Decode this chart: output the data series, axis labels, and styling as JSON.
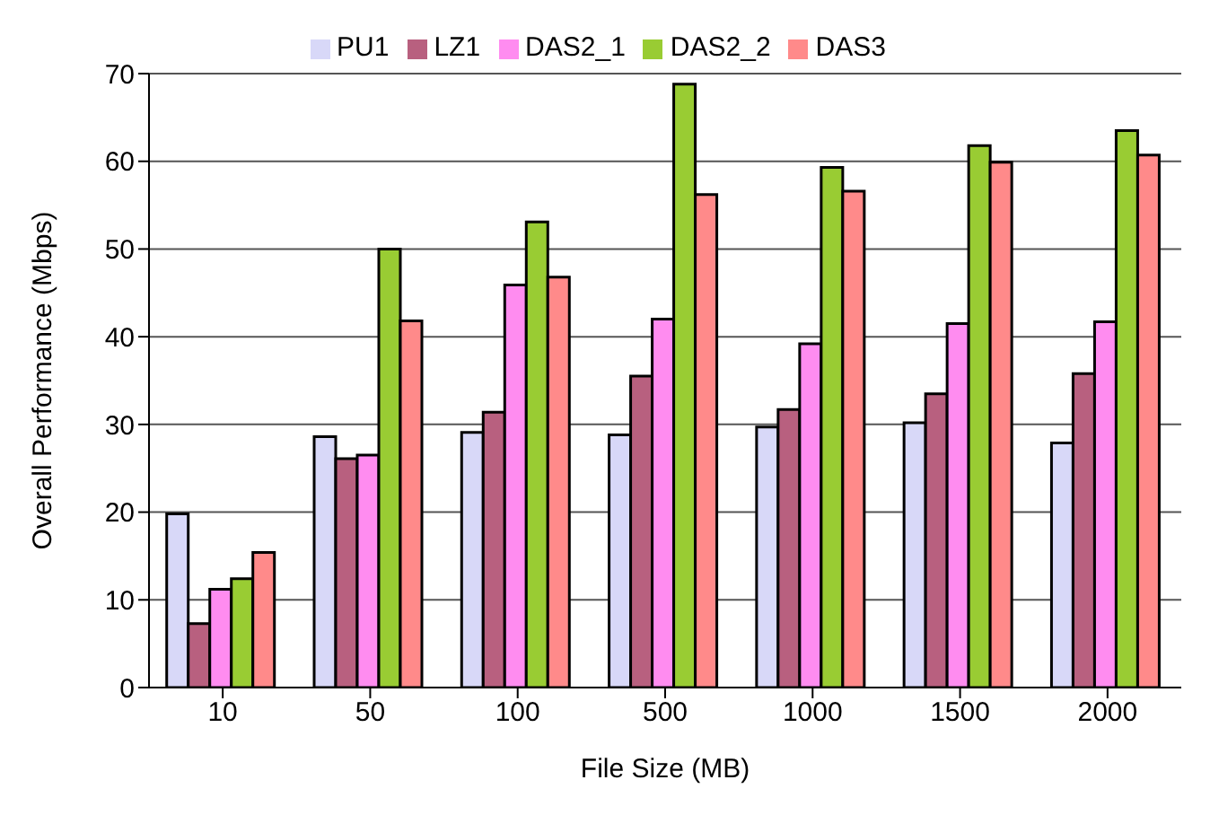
{
  "chart_data": {
    "type": "bar",
    "xlabel": "File Size (MB)",
    "ylabel": "Overall Performance (Mbps)",
    "categories": [
      "10",
      "50",
      "100",
      "500",
      "1000",
      "1500",
      "2000"
    ],
    "series": [
      {
        "name": "PU1",
        "color": "#d8d8f8",
        "values": [
          19.8,
          28.6,
          29.1,
          28.8,
          29.7,
          30.2,
          27.9
        ]
      },
      {
        "name": "LZ1",
        "color": "#b8607f",
        "values": [
          7.3,
          26.1,
          31.4,
          35.5,
          31.7,
          33.5,
          35.8
        ]
      },
      {
        "name": "DAS2_1",
        "color": "#ff8cf0",
        "values": [
          11.2,
          26.5,
          45.9,
          42,
          39.2,
          41.5,
          41.7
        ]
      },
      {
        "name": "DAS2_2",
        "color": "#99cc33",
        "values": [
          12.4,
          50,
          53.1,
          68.8,
          59.3,
          61.8,
          63.5
        ]
      },
      {
        "name": "DAS3",
        "color": "#ff8a8a",
        "values": [
          15.4,
          41.8,
          46.8,
          56.2,
          56.6,
          59.9,
          60.7
        ]
      }
    ],
    "ylim": [
      0,
      70
    ],
    "yticks": [
      0,
      10,
      20,
      30,
      40,
      50,
      60,
      70
    ],
    "grid": "y",
    "legend": "top"
  }
}
